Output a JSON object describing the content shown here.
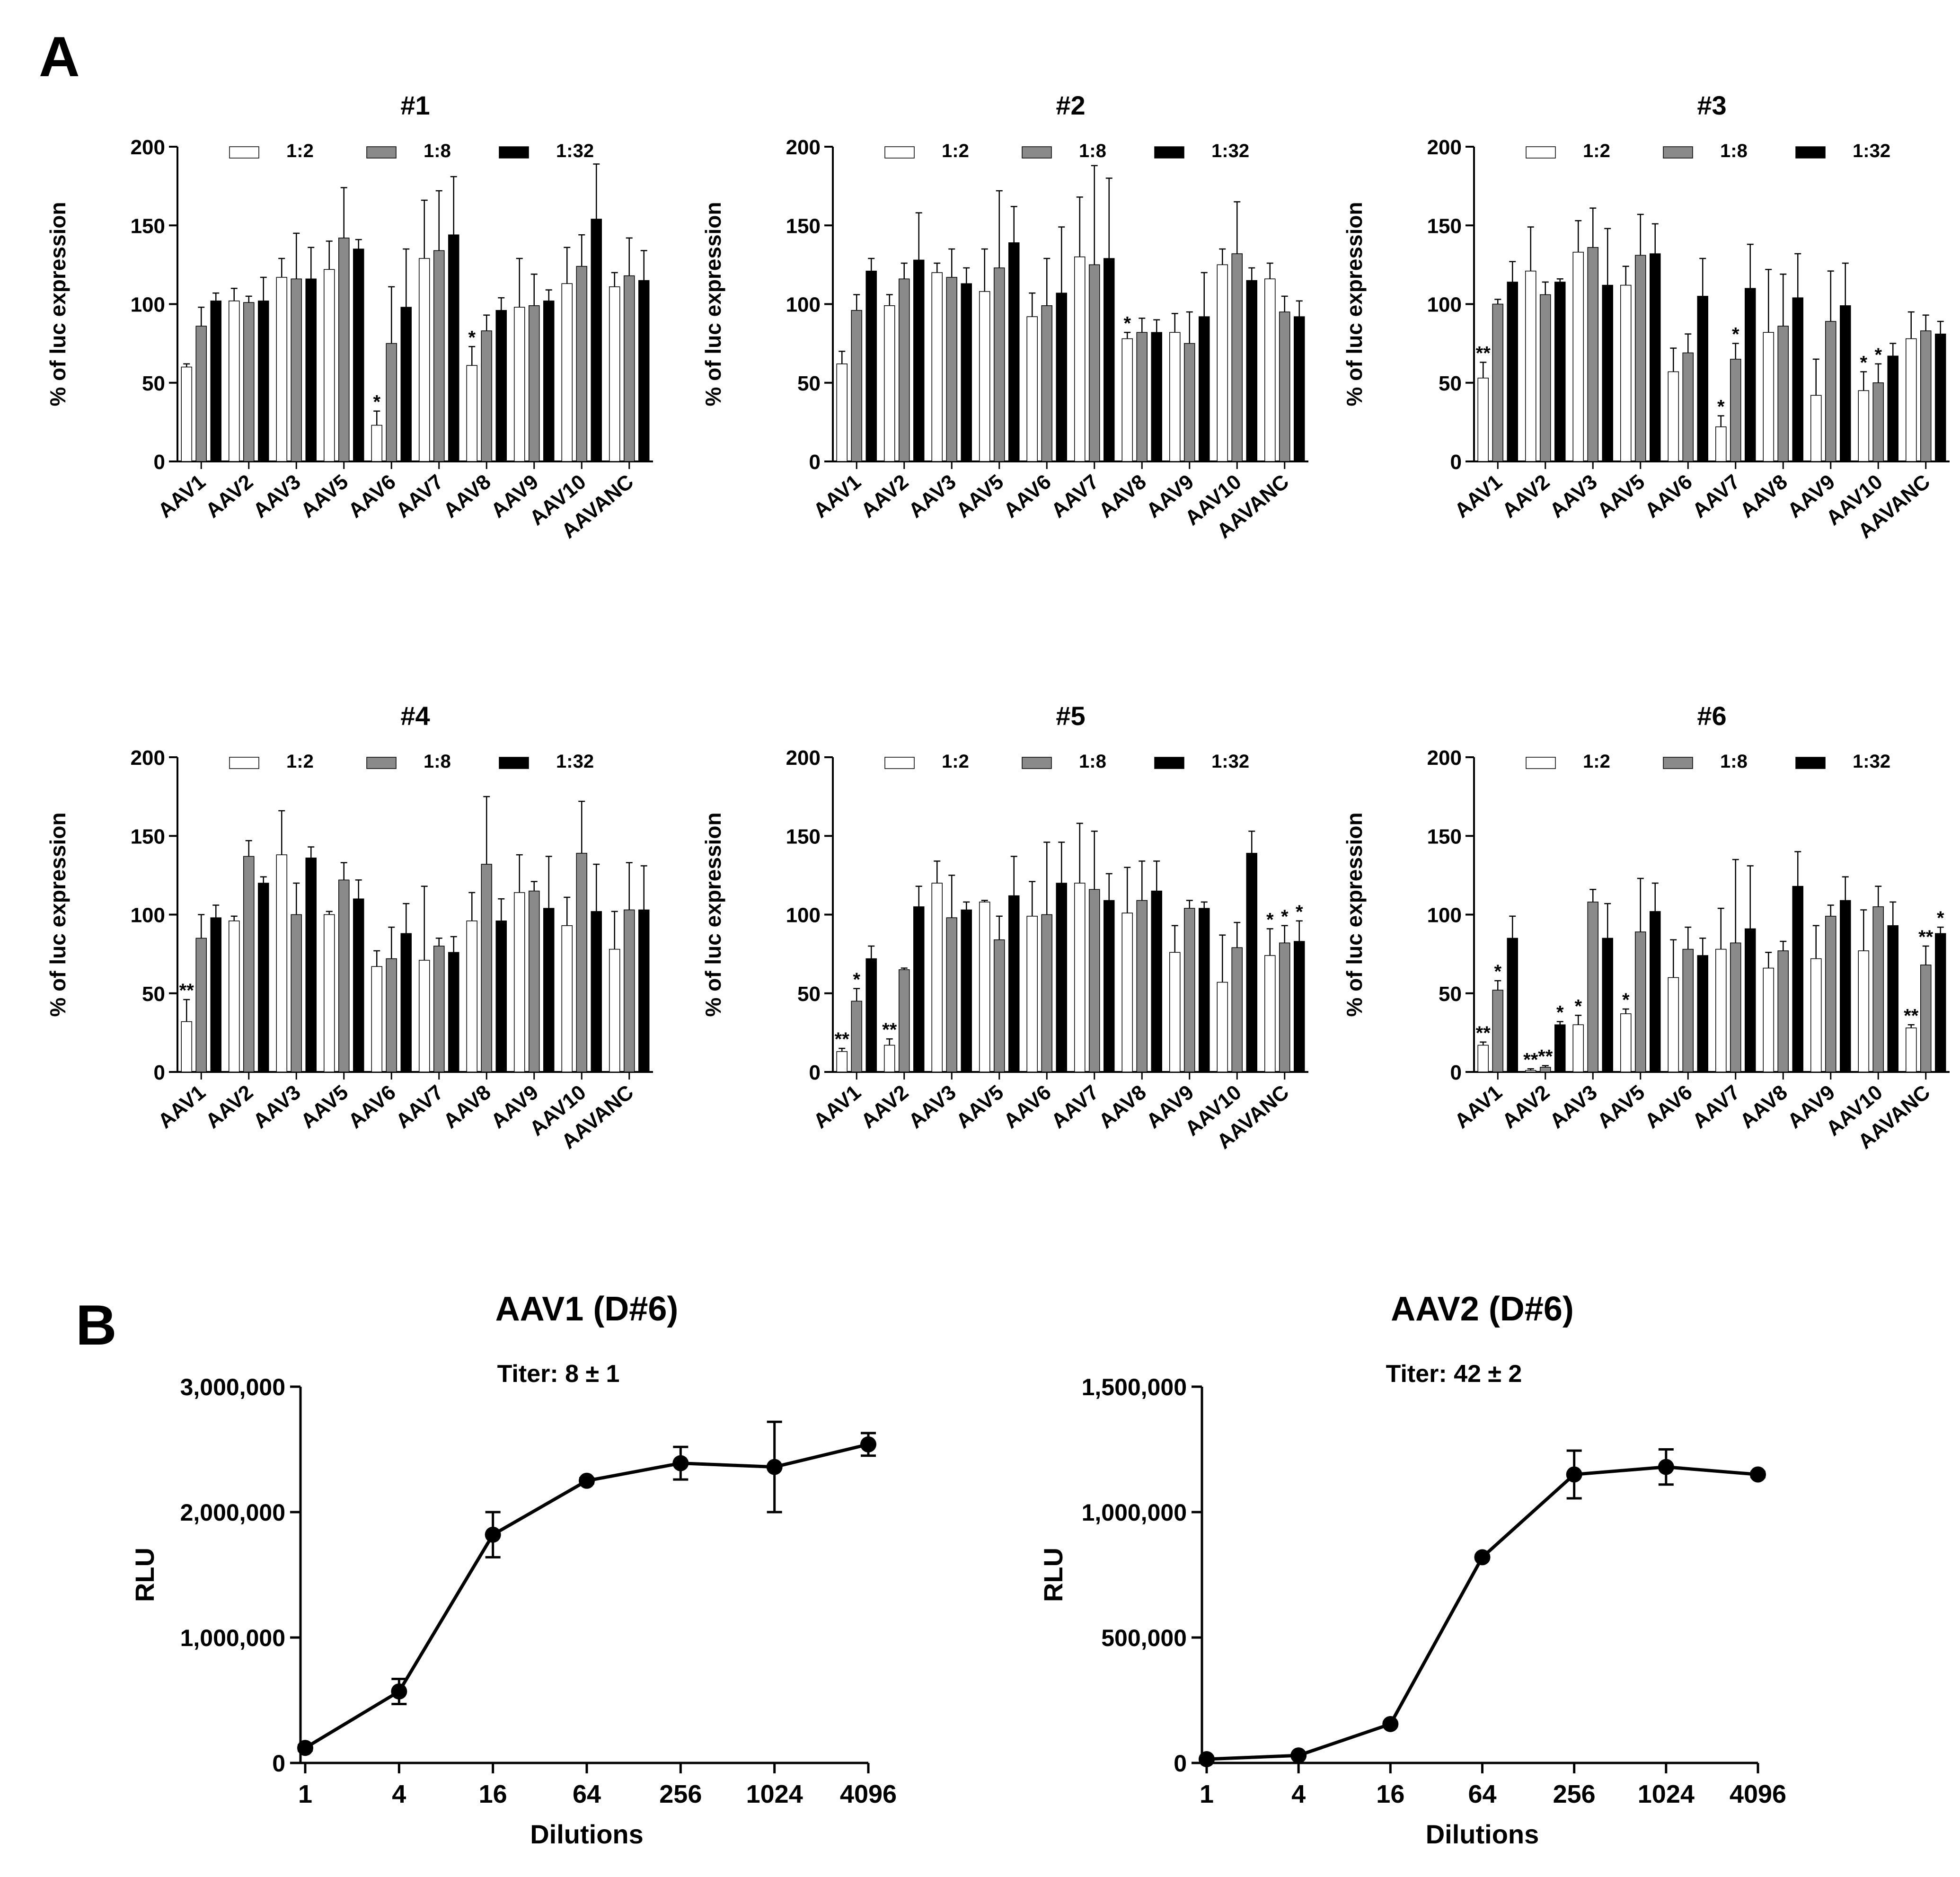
{
  "figure": {
    "panel_a_label": "A",
    "panel_b_label": "B"
  },
  "chart_data": [
    {
      "type": "bar",
      "panel": "A",
      "title": "#1",
      "xlabel": "",
      "ylabel": "% of luc expression",
      "ylim": [
        0,
        200
      ],
      "yticks": [
        0,
        50,
        100,
        150,
        200
      ],
      "categories": [
        "AAV1",
        "AAV2",
        "AAV3",
        "AAV5",
        "AAV6",
        "AAV7",
        "AAV8",
        "AAV9",
        "AAV10",
        "AAVANC"
      ],
      "legend": [
        "1:2",
        "1:8",
        "1:32"
      ],
      "series": [
        {
          "name": "1:2",
          "color": "#ffffff",
          "values": [
            60,
            102,
            117,
            122,
            23,
            129,
            61,
            98,
            113,
            111
          ],
          "errors": [
            2,
            8,
            12,
            18,
            9,
            37,
            12,
            31,
            23,
            9
          ],
          "stars": [
            "",
            "",
            "",
            "",
            "*",
            "",
            "*",
            "",
            "",
            ""
          ]
        },
        {
          "name": "1:8",
          "color": "#8a8a8a",
          "values": [
            86,
            101,
            116,
            142,
            75,
            134,
            83,
            99,
            124,
            118
          ],
          "errors": [
            12,
            4,
            29,
            32,
            36,
            38,
            10,
            20,
            20,
            24
          ],
          "stars": [
            "",
            "",
            "",
            "",
            "",
            "",
            "",
            "",
            "",
            ""
          ]
        },
        {
          "name": "1:32",
          "color": "#000000",
          "values": [
            102,
            102,
            116,
            135,
            98,
            144,
            96,
            102,
            154,
            115
          ],
          "errors": [
            5,
            15,
            20,
            6,
            37,
            37,
            8,
            7,
            35,
            19
          ],
          "stars": [
            "",
            "",
            "",
            "",
            "",
            "",
            "",
            "",
            "",
            ""
          ]
        }
      ]
    },
    {
      "type": "bar",
      "panel": "A",
      "title": "#2",
      "xlabel": "",
      "ylabel": "% of luc expression",
      "ylim": [
        0,
        200
      ],
      "yticks": [
        0,
        50,
        100,
        150,
        200
      ],
      "categories": [
        "AAV1",
        "AAV2",
        "AAV3",
        "AAV5",
        "AAV6",
        "AAV7",
        "AAV8",
        "AAV9",
        "AAV10",
        "AAVANC"
      ],
      "legend": [
        "1:2",
        "1:8",
        "1:32"
      ],
      "series": [
        {
          "name": "1:2",
          "color": "#ffffff",
          "values": [
            62,
            99,
            120,
            108,
            92,
            130,
            78,
            82,
            125,
            116
          ],
          "errors": [
            8,
            7,
            6,
            27,
            15,
            38,
            4,
            12,
            10,
            10
          ],
          "stars": [
            "",
            "",
            "",
            "",
            "",
            "",
            "*",
            "",
            "",
            ""
          ]
        },
        {
          "name": "1:8",
          "color": "#8a8a8a",
          "values": [
            96,
            116,
            117,
            123,
            99,
            125,
            82,
            75,
            132,
            95
          ],
          "errors": [
            10,
            10,
            18,
            49,
            30,
            63,
            9,
            20,
            33,
            10
          ],
          "stars": [
            "",
            "",
            "",
            "",
            "",
            "",
            "",
            "",
            "",
            ""
          ]
        },
        {
          "name": "1:32",
          "color": "#000000",
          "values": [
            121,
            128,
            113,
            139,
            107,
            129,
            82,
            92,
            115,
            92
          ],
          "errors": [
            8,
            30,
            10,
            23,
            42,
            51,
            8,
            28,
            8,
            10
          ],
          "stars": [
            "",
            "",
            "",
            "",
            "",
            "",
            "",
            "",
            "",
            ""
          ]
        }
      ]
    },
    {
      "type": "bar",
      "panel": "A",
      "title": "#3",
      "xlabel": "",
      "ylabel": "% of luc expression",
      "ylim": [
        0,
        200
      ],
      "yticks": [
        0,
        50,
        100,
        150,
        200
      ],
      "categories": [
        "AAV1",
        "AAV2",
        "AAV3",
        "AAV5",
        "AAV6",
        "AAV7",
        "AAV8",
        "AAV9",
        "AAV10",
        "AAVANC"
      ],
      "legend": [
        "1:2",
        "1:8",
        "1:32"
      ],
      "series": [
        {
          "name": "1:2",
          "color": "#ffffff",
          "values": [
            53,
            121,
            133,
            112,
            57,
            22,
            82,
            42,
            45,
            78
          ],
          "errors": [
            10,
            28,
            20,
            12,
            15,
            7,
            40,
            23,
            12,
            17
          ],
          "stars": [
            "**",
            "",
            "",
            "",
            "",
            "*",
            "",
            "",
            "*",
            ""
          ]
        },
        {
          "name": "1:8",
          "color": "#8a8a8a",
          "values": [
            100,
            106,
            136,
            131,
            69,
            65,
            86,
            89,
            50,
            83
          ],
          "errors": [
            3,
            8,
            25,
            26,
            12,
            10,
            33,
            32,
            12,
            10
          ],
          "stars": [
            "",
            "",
            "",
            "",
            "",
            "*",
            "",
            "",
            "*",
            ""
          ]
        },
        {
          "name": "1:32",
          "color": "#000000",
          "values": [
            114,
            114,
            112,
            132,
            105,
            110,
            104,
            99,
            67,
            81
          ],
          "errors": [
            13,
            2,
            36,
            19,
            24,
            28,
            28,
            27,
            8,
            8
          ],
          "stars": [
            "",
            "",
            "",
            "",
            "",
            "",
            "",
            "",
            "",
            ""
          ]
        }
      ]
    },
    {
      "type": "bar",
      "panel": "A",
      "title": "#4",
      "xlabel": "",
      "ylabel": "% of luc expression",
      "ylim": [
        0,
        200
      ],
      "yticks": [
        0,
        50,
        100,
        150,
        200
      ],
      "categories": [
        "AAV1",
        "AAV2",
        "AAV3",
        "AAV5",
        "AAV6",
        "AAV7",
        "AAV8",
        "AAV9",
        "AAV10",
        "AAVANC"
      ],
      "legend": [
        "1:2",
        "1:8",
        "1:32"
      ],
      "series": [
        {
          "name": "1:2",
          "color": "#ffffff",
          "values": [
            32,
            96,
            138,
            100,
            67,
            71,
            96,
            114,
            93,
            78
          ],
          "errors": [
            14,
            3,
            28,
            2,
            10,
            47,
            18,
            24,
            18,
            24
          ],
          "stars": [
            "**",
            "",
            "",
            "",
            "",
            "",
            "",
            "",
            "",
            ""
          ]
        },
        {
          "name": "1:8",
          "color": "#8a8a8a",
          "values": [
            85,
            137,
            100,
            122,
            72,
            80,
            132,
            115,
            139,
            103
          ],
          "errors": [
            15,
            10,
            20,
            11,
            20,
            5,
            43,
            6,
            33,
            30
          ],
          "stars": [
            "",
            "",
            "",
            "",
            "",
            "",
            "",
            "",
            "",
            ""
          ]
        },
        {
          "name": "1:32",
          "color": "#000000",
          "values": [
            98,
            120,
            136,
            110,
            88,
            76,
            96,
            104,
            102,
            103
          ],
          "errors": [
            8,
            4,
            7,
            12,
            19,
            10,
            14,
            33,
            30,
            28
          ],
          "stars": [
            "",
            "",
            "",
            "",
            "",
            "",
            "",
            "",
            "",
            ""
          ]
        }
      ]
    },
    {
      "type": "bar",
      "panel": "A",
      "title": "#5",
      "xlabel": "",
      "ylabel": "% of luc expression",
      "ylim": [
        0,
        200
      ],
      "yticks": [
        0,
        50,
        100,
        150,
        200
      ],
      "categories": [
        "AAV1",
        "AAV2",
        "AAV3",
        "AAV5",
        "AAV6",
        "AAV7",
        "AAV8",
        "AAV9",
        "AAV10",
        "AAVANC"
      ],
      "legend": [
        "1:2",
        "1:8",
        "1:32"
      ],
      "series": [
        {
          "name": "1:2",
          "color": "#ffffff",
          "values": [
            13,
            17,
            120,
            108,
            99,
            120,
            101,
            76,
            57,
            74
          ],
          "errors": [
            2,
            4,
            14,
            1,
            22,
            38,
            29,
            17,
            30,
            17
          ],
          "stars": [
            "**",
            "**",
            "",
            "",
            "",
            "",
            "",
            "",
            "",
            "*"
          ]
        },
        {
          "name": "1:8",
          "color": "#8a8a8a",
          "values": [
            45,
            65,
            98,
            84,
            100,
            116,
            109,
            104,
            79,
            82
          ],
          "errors": [
            8,
            1,
            27,
            15,
            46,
            37,
            25,
            5,
            16,
            11
          ],
          "stars": [
            "*",
            "",
            "",
            "",
            "",
            "",
            "",
            "",
            "",
            "*"
          ]
        },
        {
          "name": "1:32",
          "color": "#000000",
          "values": [
            72,
            105,
            103,
            112,
            120,
            109,
            115,
            104,
            139,
            83
          ],
          "errors": [
            8,
            13,
            5,
            25,
            26,
            17,
            19,
            4,
            14,
            13
          ],
          "stars": [
            "",
            "",
            "",
            "",
            "",
            "",
            "",
            "",
            "",
            "*"
          ]
        }
      ]
    },
    {
      "type": "bar",
      "panel": "A",
      "title": "#6",
      "xlabel": "",
      "ylabel": "% of luc expression",
      "ylim": [
        0,
        200
      ],
      "yticks": [
        0,
        50,
        100,
        150,
        200
      ],
      "categories": [
        "AAV1",
        "AAV2",
        "AAV3",
        "AAV5",
        "AAV6",
        "AAV7",
        "AAV8",
        "AAV9",
        "AAV10",
        "AAVANC"
      ],
      "legend": [
        "1:2",
        "1:8",
        "1:32"
      ],
      "series": [
        {
          "name": "1:2",
          "color": "#ffffff",
          "values": [
            17,
            1,
            30,
            37,
            60,
            78,
            66,
            72,
            77,
            28
          ],
          "errors": [
            2,
            1,
            6,
            3,
            24,
            26,
            10,
            21,
            26,
            2
          ],
          "stars": [
            "**",
            "**",
            "*",
            "*",
            "",
            "",
            "",
            "",
            "",
            "**"
          ]
        },
        {
          "name": "1:8",
          "color": "#8a8a8a",
          "values": [
            52,
            3,
            108,
            89,
            78,
            82,
            77,
            99,
            105,
            68
          ],
          "errors": [
            6,
            1,
            8,
            34,
            14,
            53,
            6,
            7,
            13,
            12
          ],
          "stars": [
            "*",
            "**",
            "",
            "",
            "",
            "",
            "",
            "",
            "",
            "**"
          ]
        },
        {
          "name": "1:32",
          "color": "#000000",
          "values": [
            85,
            30,
            85,
            102,
            74,
            91,
            118,
            109,
            93,
            88
          ],
          "errors": [
            14,
            2,
            22,
            18,
            11,
            40,
            22,
            15,
            15,
            4
          ],
          "stars": [
            "",
            "*",
            "",
            "",
            "",
            "",
            "",
            "",
            "",
            "*"
          ]
        }
      ]
    },
    {
      "type": "line",
      "panel": "B",
      "title": "AAV1 (D#6)",
      "subtitle": "Titer: 8 ± 1",
      "xlabel": "Dilutions",
      "ylabel": "RLU",
      "x": [
        1,
        4,
        16,
        64,
        256,
        1024,
        4096
      ],
      "x_tick_labels": [
        "1",
        "4",
        "16",
        "64",
        "256",
        "1024",
        "4096"
      ],
      "y": [
        120000,
        570000,
        1820000,
        2250000,
        2390000,
        2360000,
        2540000
      ],
      "errors": [
        20000,
        100000,
        180000,
        20000,
        130000,
        360000,
        90000
      ],
      "ylim": [
        0,
        3000000
      ],
      "yticks": [
        0,
        1000000,
        2000000,
        3000000
      ],
      "y_tick_labels": [
        "0",
        "1,000,000",
        "2,000,000",
        "3,000,000"
      ]
    },
    {
      "type": "line",
      "panel": "B",
      "title": "AAV2 (D#6)",
      "subtitle": "Titer: 42 ± 2",
      "xlabel": "Dilutions",
      "ylabel": "RLU",
      "x": [
        1,
        4,
        16,
        64,
        256,
        1024,
        4096
      ],
      "x_tick_labels": [
        "1",
        "4",
        "16",
        "64",
        "256",
        "1024",
        "4096"
      ],
      "y": [
        15000,
        30000,
        155000,
        820000,
        1150000,
        1180000,
        1150000
      ],
      "errors": [
        3000,
        5000,
        8000,
        8000,
        95000,
        70000,
        10000
      ],
      "ylim": [
        0,
        1500000
      ],
      "yticks": [
        0,
        500000,
        1000000,
        1500000
      ],
      "y_tick_labels": [
        "0",
        "500,000",
        "1,000,000",
        "1,500,000"
      ]
    }
  ]
}
